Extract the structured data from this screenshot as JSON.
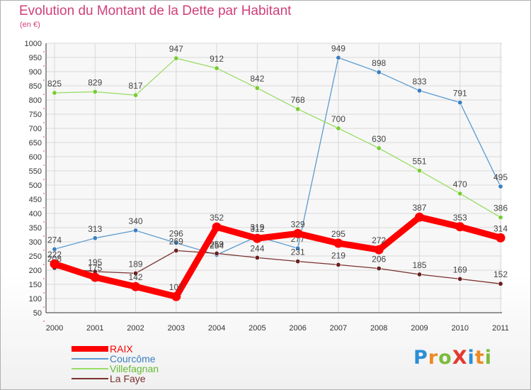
{
  "title": "Evolution du Montant de la Dette par Habitant",
  "unit": "(en €)",
  "logo": {
    "text": "ProXiti",
    "letters": [
      "P",
      "r",
      "o",
      "X",
      "i",
      "t",
      "i"
    ],
    "colors": [
      "#2b8fd6",
      "#ee8a22",
      "#7dbb3c",
      "#e5382d",
      "#2b8fd6",
      "#ee8a22",
      "#7dbb3c"
    ]
  },
  "chart_data": {
    "type": "line",
    "title": "Evolution du Montant de la Dette par Habitant",
    "ylabel": "(en €)",
    "xlabel": "",
    "ylim": [
      50,
      1000
    ],
    "ytick_step": 50,
    "yticks": [
      50,
      100,
      150,
      200,
      250,
      300,
      350,
      400,
      450,
      500,
      550,
      600,
      650,
      700,
      750,
      800,
      850,
      900,
      950,
      1000
    ],
    "grid": true,
    "categories": [
      "2000",
      "2001",
      "2002",
      "2003",
      "2004",
      "2005",
      "2006",
      "2007",
      "2008",
      "2009",
      "2010",
      "2011"
    ],
    "series": [
      {
        "name": "RAIX",
        "color": "#ff0000",
        "emphasis": true,
        "values": [
          222,
          175,
          142,
          107,
          352,
          312,
          329,
          295,
          272,
          387,
          353,
          314
        ]
      },
      {
        "name": "Courcôme",
        "color": "#5b9bd0",
        "marker": "#3a7fc0",
        "values": [
          274,
          313,
          340,
          296,
          254,
          319,
          277,
          949,
          898,
          833,
          791,
          495
        ]
      },
      {
        "name": "Villefagnan",
        "color": "#99dd66",
        "marker": "#77cc33",
        "values": [
          825,
          829,
          817,
          947,
          912,
          842,
          768,
          700,
          630,
          551,
          470,
          386
        ]
      },
      {
        "name": "La Faye",
        "color": "#7a3030",
        "marker": "#6b1f1f",
        "values": [
          208,
          195,
          189,
          269,
          259,
          244,
          231,
          219,
          206,
          185,
          169,
          152
        ]
      }
    ]
  }
}
